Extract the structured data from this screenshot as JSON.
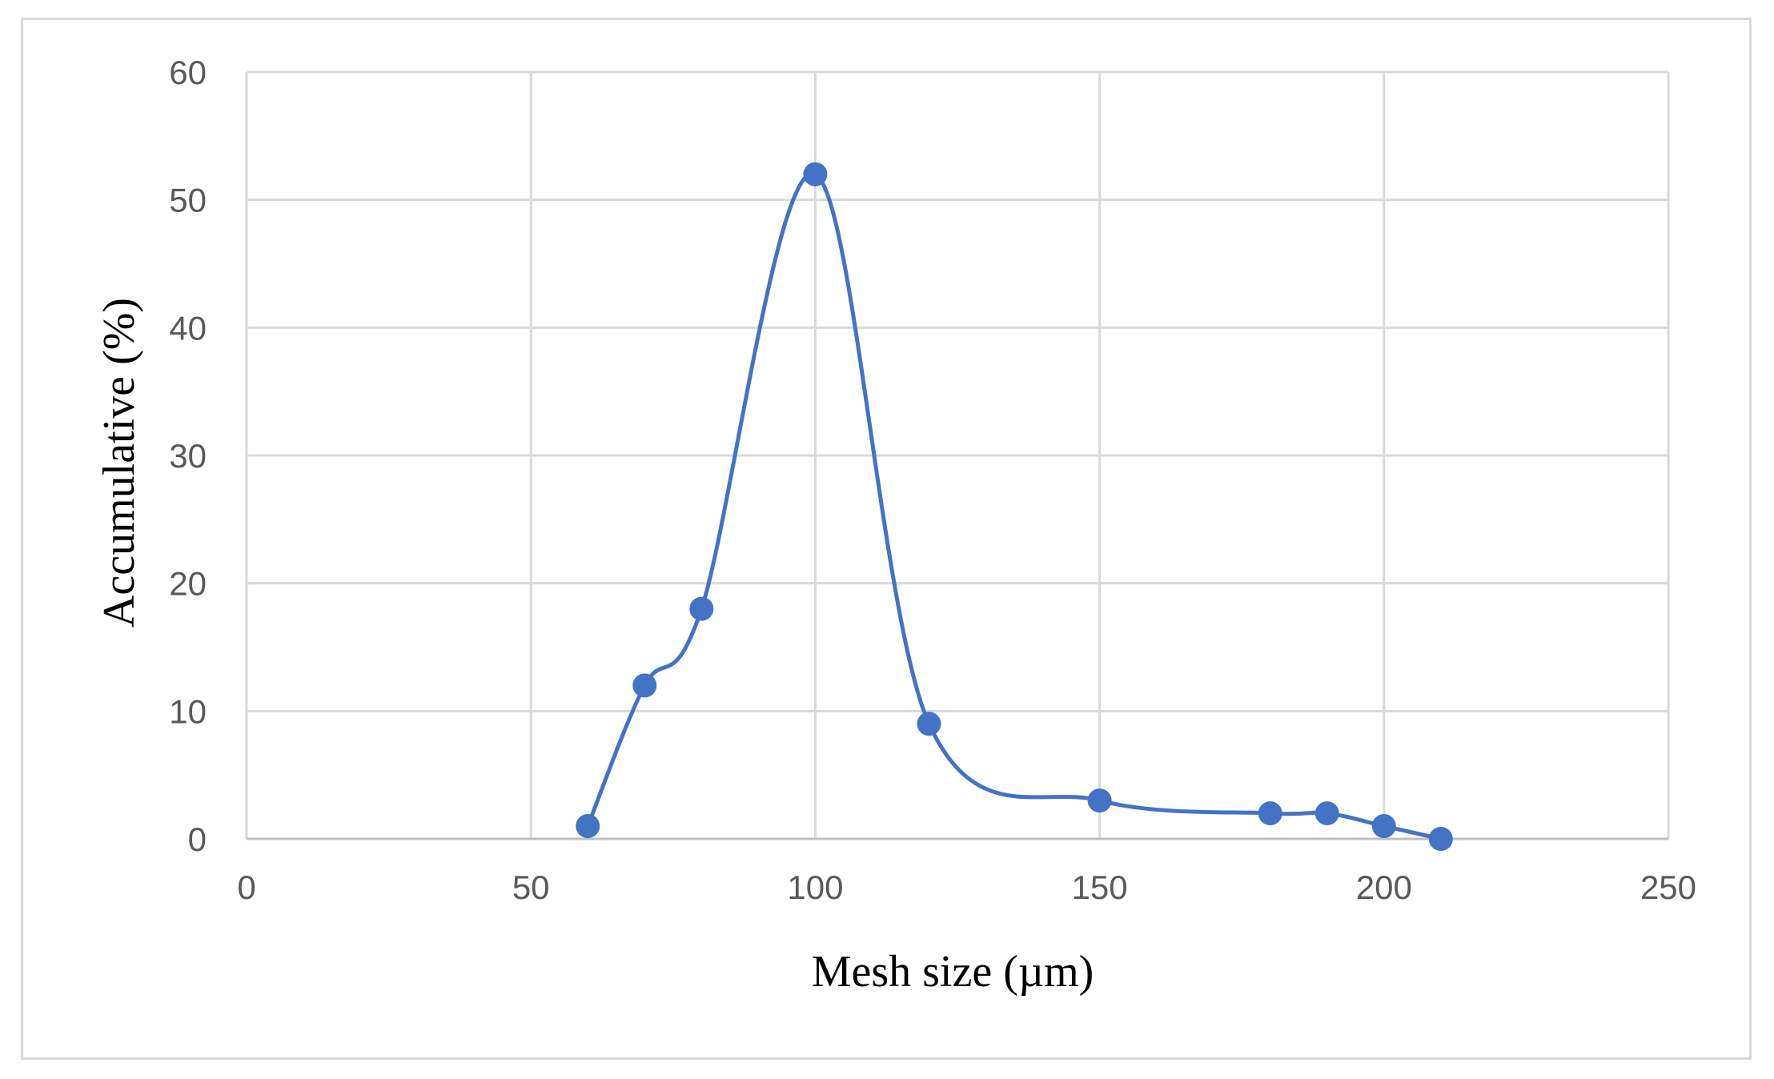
{
  "chart_data": {
    "type": "scatter",
    "xlabel": "Mesh size (µm)",
    "ylabel": "Accumulative (%)",
    "xlim": [
      0,
      250
    ],
    "ylim": [
      0,
      60
    ],
    "x_ticks": [
      0,
      50,
      100,
      150,
      200,
      250
    ],
    "y_ticks": [
      0,
      10,
      20,
      30,
      40,
      50,
      60
    ],
    "grid": true,
    "line_style": "smoothed",
    "series": [
      {
        "x": [
          60,
          70,
          80,
          100,
          120,
          150,
          180,
          190,
          200,
          210
        ],
        "y": [
          1,
          12,
          18,
          52,
          9,
          3,
          2,
          2,
          1,
          0
        ]
      }
    ],
    "colors": {
      "series": "#4472c4",
      "grid": "#d9d9d9",
      "axis": "#bfbfbf"
    }
  }
}
